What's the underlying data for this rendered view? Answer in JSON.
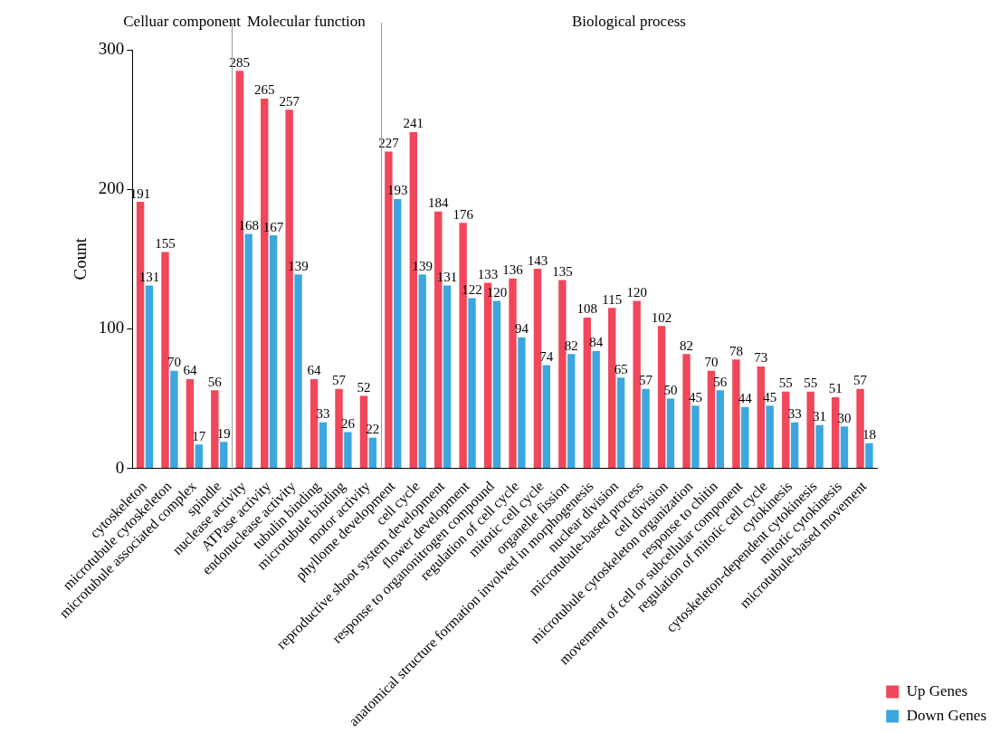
{
  "chart_data": {
    "type": "bar",
    "ylabel": "Count",
    "categories": [
      "cytoskeleton",
      "microtubule cytoskeleton",
      "microtubule associated complex",
      "spindle",
      "nuclease activity",
      "ATPase activity",
      "endonuclease activity",
      "tubulin binding",
      "microtubule binding",
      "motor activity",
      "phyllome development",
      "cell cycle",
      "reproductive shoot system development",
      "flower development",
      "response to organonitrogen compound",
      "regulation of cell cycle",
      "mitotic cell cycle",
      "organelle fission",
      "anatomical structure formation involved in morphogenesis",
      "nuclear division",
      "microtubule-based process",
      "cell division",
      "microtubule cytoskeleton organization",
      "response to chitin",
      "movement of cell or subcellular component",
      "regulation of mitotic cell cycle",
      "cytokinesis",
      "cytoskeleton-dependent cytokinesis",
      "mitotic cytokinesis",
      "microtubule-based movement"
    ],
    "series": [
      {
        "name": "Up Genes",
        "color": "#f0475a",
        "values": [
          191,
          155,
          64,
          56,
          285,
          265,
          257,
          64,
          57,
          52,
          227,
          241,
          184,
          176,
          133,
          136,
          143,
          135,
          108,
          115,
          120,
          102,
          82,
          70,
          78,
          73,
          55,
          55,
          51,
          57
        ]
      },
      {
        "name": "Down Genes",
        "color": "#3ca7de",
        "values": [
          131,
          70,
          17,
          19,
          168,
          167,
          139,
          33,
          26,
          22,
          193,
          139,
          131,
          122,
          120,
          94,
          74,
          82,
          84,
          65,
          57,
          50,
          45,
          56,
          44,
          45,
          33,
          31,
          30,
          18
        ]
      }
    ],
    "ylim": [
      0,
      300
    ],
    "yticks": [
      0,
      100,
      200,
      300
    ],
    "grid": false,
    "legend": "bottom right",
    "data_labels": true,
    "annotations": [
      "Celluar component",
      "Molecular function",
      "Biological process"
    ]
  }
}
